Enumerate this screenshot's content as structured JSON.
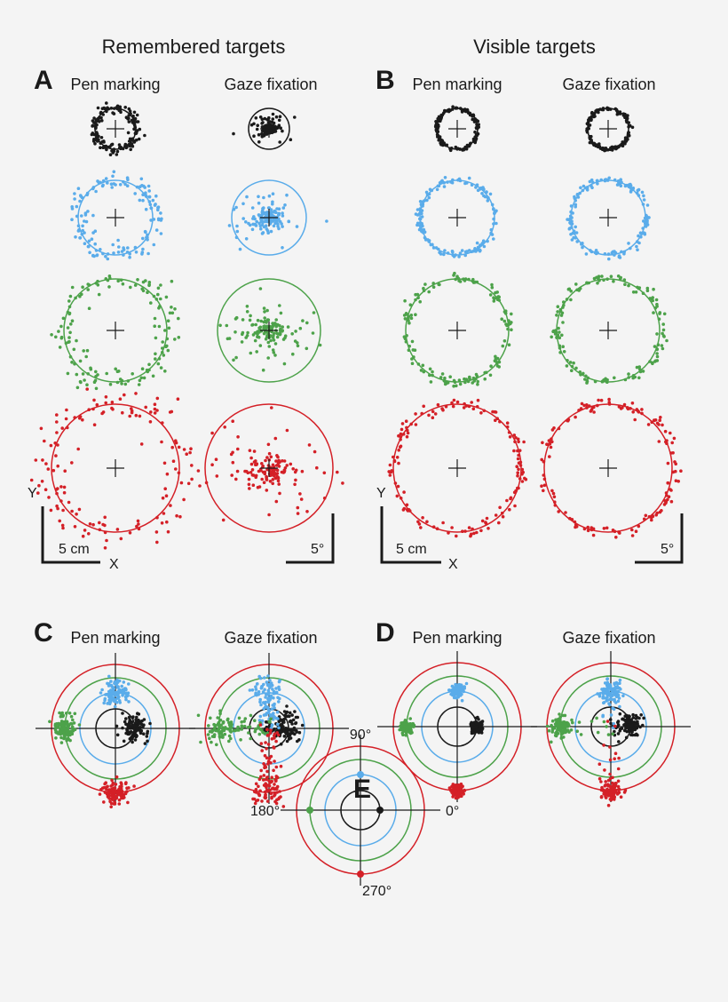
{
  "headers": {
    "remembered": "Remembered targets",
    "visible": "Visible targets"
  },
  "panels": {
    "A": {
      "label": "A",
      "col1": "Pen marking",
      "col2": "Gaze fixation",
      "scale_left_y": "Y",
      "scale_left_len": "5 cm",
      "scale_left_x": "X",
      "scale_right_len": "5°"
    },
    "B": {
      "label": "B",
      "col1": "Pen marking",
      "col2": "Gaze fixation",
      "scale_left_y": "Y",
      "scale_left_len": "5 cm",
      "scale_left_x": "X",
      "scale_right_len": "5°"
    },
    "C": {
      "label": "C",
      "col1": "Pen marking",
      "col2": "Gaze fixation"
    },
    "D": {
      "label": "D",
      "col1": "Pen marking",
      "col2": "Gaze fixation"
    },
    "E": {
      "label": "E",
      "angle_90": "90°",
      "angle_0": "0°",
      "angle_180": "180°",
      "angle_270": "270°"
    }
  },
  "target_colors": {
    "smallest": "#1a1a1a",
    "small": "#5aacea",
    "medium": "#4da24a",
    "large": "#d42027"
  },
  "target_angles_deg": {
    "smallest": 0,
    "small": 90,
    "medium": 180,
    "large": 270
  }
}
